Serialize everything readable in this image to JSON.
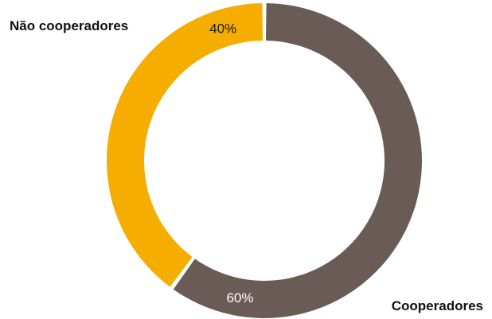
{
  "chart_data": {
    "type": "pie",
    "donut": true,
    "slices": [
      {
        "label": "Cooperadores",
        "value": 60,
        "value_label": "60%",
        "color": "#6b5b57",
        "value_label_color": "#ffffff"
      },
      {
        "label": "Não cooperadores",
        "value": 40,
        "value_label": "40%",
        "color": "#f5ad00",
        "value_label_color": "#1a1a1a"
      }
    ],
    "start": "12 o'clock",
    "direction": "clockwise",
    "legend": "none"
  }
}
